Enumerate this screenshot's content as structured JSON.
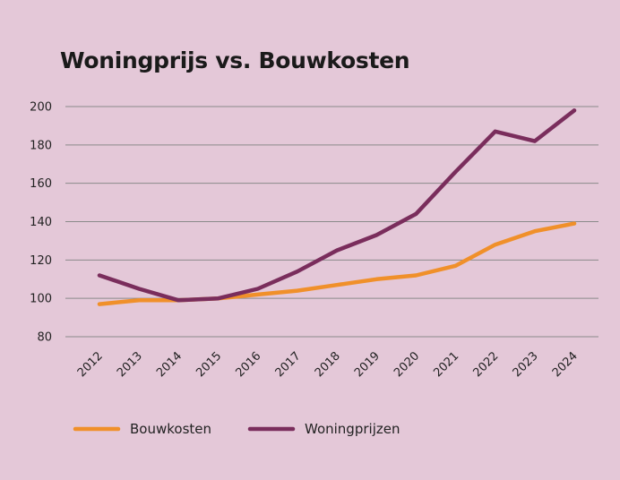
{
  "chart_data": {
    "type": "line",
    "title": "Woningprijs vs. Bouwkosten",
    "xlabel": "",
    "ylabel": "",
    "categories": [
      "2012",
      "2013",
      "2014",
      "2015",
      "2016",
      "2017",
      "2018",
      "2019",
      "2020",
      "2021",
      "2022",
      "2023",
      "2024"
    ],
    "yticks": [
      80,
      100,
      120,
      140,
      160,
      180,
      200
    ],
    "ylim": [
      80,
      200
    ],
    "grid": true,
    "legend_position": "bottom-left",
    "series": [
      {
        "name": "Bouwkosten",
        "color": "#f0902a",
        "values": [
          97,
          99,
          99,
          100,
          102,
          104,
          107,
          110,
          112,
          117,
          128,
          135,
          139
        ]
      },
      {
        "name": "Woningprijzen",
        "color": "#7a2d5c",
        "values": [
          112,
          105,
          99,
          100,
          105,
          114,
          125,
          133,
          144,
          166,
          187,
          182,
          198
        ]
      }
    ]
  }
}
